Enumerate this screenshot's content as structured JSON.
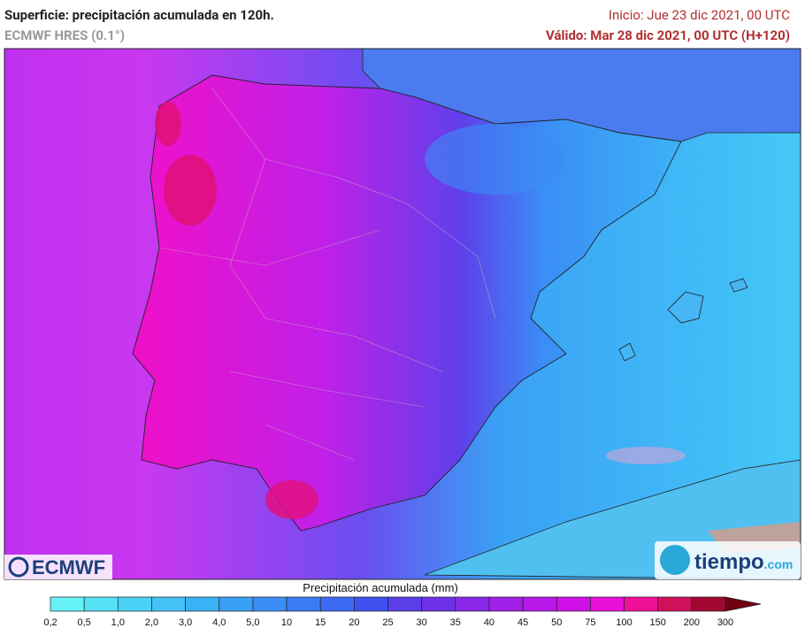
{
  "header": {
    "title": "Superficie: precipitación acumulada en 120h.",
    "model": "ECMWF HRES (0.1°)",
    "init": "Inicio: Jue 23 dic 2021, 00 UTC",
    "valid": "Válido: Mar 28 dic 2021, 00 UTC (H+120)"
  },
  "logos": {
    "ecmwf": "ECMWF",
    "tiempo": "tiempo",
    "tiempo_domain": ".com"
  },
  "legend": {
    "title": "Precipitación acumulada (mm)",
    "labels": [
      "0,2",
      "0,5",
      "1,0",
      "2,0",
      "3,0",
      "4,0",
      "5,0",
      "10",
      "15",
      "20",
      "25",
      "30",
      "35",
      "40",
      "45",
      "50",
      "75",
      "100",
      "150",
      "200",
      "300"
    ],
    "colors": [
      "#66f2f6",
      "#55e2f6",
      "#4cd2f6",
      "#44c2f6",
      "#3cb2f6",
      "#3aa0f5",
      "#3a8ef5",
      "#3b7cf5",
      "#3c6af5",
      "#3f52f0",
      "#5a3ee8",
      "#7030e8",
      "#8a28e8",
      "#a020e8",
      "#b818e8",
      "#d010e8",
      "#e810d8",
      "#f01098",
      "#d0105a",
      "#a00830",
      "#700010"
    ]
  }
}
